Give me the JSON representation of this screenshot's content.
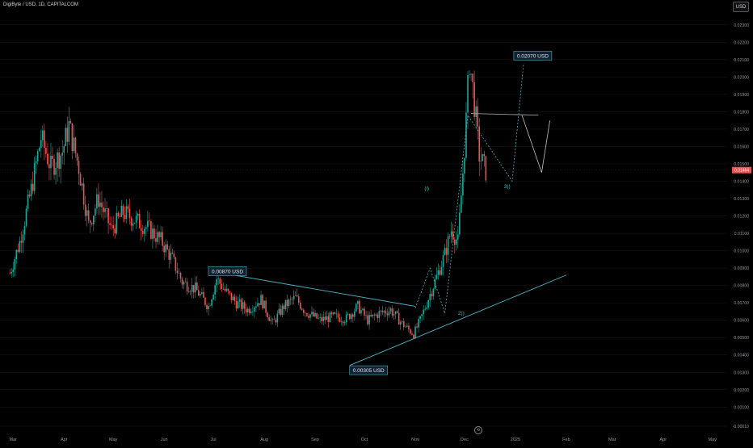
{
  "header": {
    "title": "DigiByte / USD, 1D, CAPITALCOM"
  },
  "controls": {
    "currency_button": "USD",
    "replay_icon": "replay-icon"
  },
  "colors": {
    "up": "#26a69a",
    "down": "#ef5350",
    "wave": "#4fb3c4",
    "grid": "#1a1a1a",
    "label_bg": "#112233"
  },
  "chart_data": {
    "type": "candlestick",
    "title": "DigiByte / USD, 1D, CAPITALCOM",
    "xlabel": "",
    "ylabel": "",
    "ylim": [
      -0.0001,
      0.0235
    ],
    "y_ticks": [
      0.023,
      0.022,
      0.021,
      0.02,
      0.019,
      0.018,
      0.017,
      0.016,
      0.015,
      0.014,
      0.013,
      0.012,
      0.011,
      0.01,
      0.009,
      0.008,
      0.007,
      0.006,
      0.005,
      0.004,
      0.003,
      0.002,
      0.001,
      -0.0001
    ],
    "y_tick_labels": [
      "0.02300",
      "0.02200",
      "0.02100",
      "0.02000",
      "0.01900",
      "0.01800",
      "0.01700",
      "0.01600",
      "0.01500",
      "0.01400",
      "0.01300",
      "0.01200",
      "0.01100",
      "0.01000",
      "0.00900",
      "0.00800",
      "0.00700",
      "0.00600",
      "0.00500",
      "0.00400",
      "0.00300",
      "0.00200",
      "0.00100",
      "-0.00010"
    ],
    "x_ticks": [
      "2024-03-01",
      "2024-04-01",
      "2024-05-01",
      "2024-06-01",
      "2024-07-01",
      "2024-08-01",
      "2024-09-01",
      "2024-10-01",
      "2024-11-01",
      "2024-12-01",
      "2025-01-01",
      "2025-02-01",
      "2025-03-01",
      "2025-04-01",
      "2025-05-01"
    ],
    "x_tick_labels": [
      "Mar",
      "Apr",
      "May",
      "Jun",
      "Jul",
      "Aug",
      "Sep",
      "Oct",
      "Nov",
      "Dec",
      "2025",
      "Feb",
      "Mar",
      "Apr",
      "May"
    ],
    "current_price": 0.01464,
    "current_price_label": "0.01464",
    "close_path": [
      [
        "2024-02-28",
        0.0087
      ],
      [
        "2024-03-05",
        0.0105
      ],
      [
        "2024-03-12",
        0.0135
      ],
      [
        "2024-03-18",
        0.0165
      ],
      [
        "2024-03-24",
        0.0148
      ],
      [
        "2024-03-31",
        0.0157
      ],
      [
        "2024-04-04",
        0.0172
      ],
      [
        "2024-04-10",
        0.0148
      ],
      [
        "2024-04-16",
        0.0115
      ],
      [
        "2024-04-22",
        0.013
      ],
      [
        "2024-04-30",
        0.0112
      ],
      [
        "2024-05-07",
        0.0122
      ],
      [
        "2024-05-14",
        0.0118
      ],
      [
        "2024-05-22",
        0.0113
      ],
      [
        "2024-05-30",
        0.0106
      ],
      [
        "2024-06-06",
        0.0095
      ],
      [
        "2024-06-12",
        0.0082
      ],
      [
        "2024-06-20",
        0.0078
      ],
      [
        "2024-06-28",
        0.0068
      ],
      [
        "2024-07-03",
        0.0084
      ],
      [
        "2024-07-08",
        0.0077
      ],
      [
        "2024-07-15",
        0.007
      ],
      [
        "2024-07-22",
        0.0066
      ],
      [
        "2024-07-30",
        0.0072
      ],
      [
        "2024-08-06",
        0.0058
      ],
      [
        "2024-08-13",
        0.0068
      ],
      [
        "2024-08-20",
        0.0073
      ],
      [
        "2024-08-26",
        0.0065
      ],
      [
        "2024-09-04",
        0.006
      ],
      [
        "2024-09-12",
        0.0062
      ],
      [
        "2024-09-20",
        0.0061
      ],
      [
        "2024-09-27",
        0.0068
      ],
      [
        "2024-10-03",
        0.006
      ],
      [
        "2024-10-10",
        0.0064
      ],
      [
        "2024-10-17",
        0.0066
      ],
      [
        "2024-10-24",
        0.0058
      ],
      [
        "2024-10-31",
        0.0052
      ],
      [
        "2024-11-04",
        0.006
      ],
      [
        "2024-11-10",
        0.0075
      ],
      [
        "2024-11-14",
        0.0085
      ],
      [
        "2024-11-19",
        0.0098
      ],
      [
        "2024-11-23",
        0.0112
      ],
      [
        "2024-11-27",
        0.0105
      ],
      [
        "2024-11-30",
        0.0145
      ],
      [
        "2024-12-02",
        0.0175
      ],
      [
        "2024-12-04",
        0.021
      ],
      [
        "2024-12-07",
        0.0185
      ],
      [
        "2024-12-10",
        0.0155
      ],
      [
        "2024-12-14",
        0.0146
      ]
    ],
    "wave_labels": [
      {
        "text": "(i)",
        "date": "2024-11-08",
        "price": 0.0135
      },
      {
        "text": "2))",
        "date": "2024-11-29",
        "price": 0.0063
      },
      {
        "text": "3))",
        "date": "2024-12-27",
        "price": 0.0136
      }
    ],
    "price_labels": [
      {
        "text": "0.00870 USD",
        "date": "2024-06-28",
        "price": 0.0088
      },
      {
        "text": "0.00305 USD",
        "date": "2024-09-22",
        "price": 0.0031
      },
      {
        "text": "0.02070 USD",
        "date": "2024-12-31",
        "price": 0.0212
      }
    ],
    "trendlines": [
      {
        "name": "descending-resistance",
        "from": [
          "2024-07-01",
          0.0088
        ],
        "to": [
          "2024-11-01",
          0.0068
        ]
      },
      {
        "name": "ascending-support",
        "from": [
          "2024-09-22",
          0.0034
        ],
        "to": [
          "2025-02-01",
          0.0086
        ]
      },
      {
        "name": "horizontal-level",
        "from": [
          "2024-12-05",
          0.0179
        ],
        "to": [
          "2025-01-15",
          0.0178
        ]
      }
    ],
    "projection_paths": [
      [
        [
          "2024-11-01",
          0.0067
        ],
        [
          "2024-11-10",
          0.009
        ],
        [
          "2024-11-19",
          0.0064
        ],
        [
          "2024-12-03",
          0.0178
        ],
        [
          "2024-12-30",
          0.014
        ],
        [
          "2025-01-06",
          0.0208
        ]
      ],
      [
        [
          "2025-01-05",
          0.0178
        ],
        [
          "2025-01-17",
          0.0145
        ],
        [
          "2025-01-22",
          0.0175
        ]
      ]
    ]
  }
}
